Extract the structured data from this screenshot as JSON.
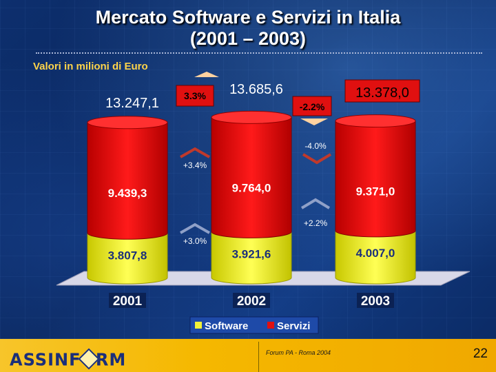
{
  "title_line1": "Mercato Software e Servizi in Italia",
  "title_line2": "(2001 – 2003)",
  "subtitle": "Valori in milioni di Euro",
  "footer_text": "Forum PA  - Roma 2004",
  "page_number": "22",
  "logo_text": "ASSINFORM",
  "chart_data": {
    "type": "bar",
    "stacked": true,
    "categories": [
      "2001",
      "2002",
      "2003"
    ],
    "series": [
      {
        "name": "Software",
        "values": [
          3807.8,
          3921.6,
          4007.0
        ],
        "labels": [
          "3.807,8",
          "3.921,6",
          "4.007,0"
        ],
        "color": "#f2f23a"
      },
      {
        "name": "Servizi",
        "values": [
          9439.3,
          9764.0,
          9371.0
        ],
        "labels": [
          "9.439,3",
          "9.764,0",
          "9.371,0"
        ],
        "color": "#e01010"
      }
    ],
    "totals": [
      13247.1,
      13685.6,
      13378.0
    ],
    "total_labels": [
      "13.247,1",
      "13.685,6",
      "13.378,0"
    ],
    "total_change_labels": [
      "3.3%",
      "-2.2%"
    ],
    "servizi_change_labels": [
      "+3.4%",
      "-4.0%"
    ],
    "software_change_labels": [
      "+3.0%",
      "+2.2%"
    ],
    "legend": [
      "Software",
      "Servizi"
    ],
    "legend_position": "bottom"
  }
}
